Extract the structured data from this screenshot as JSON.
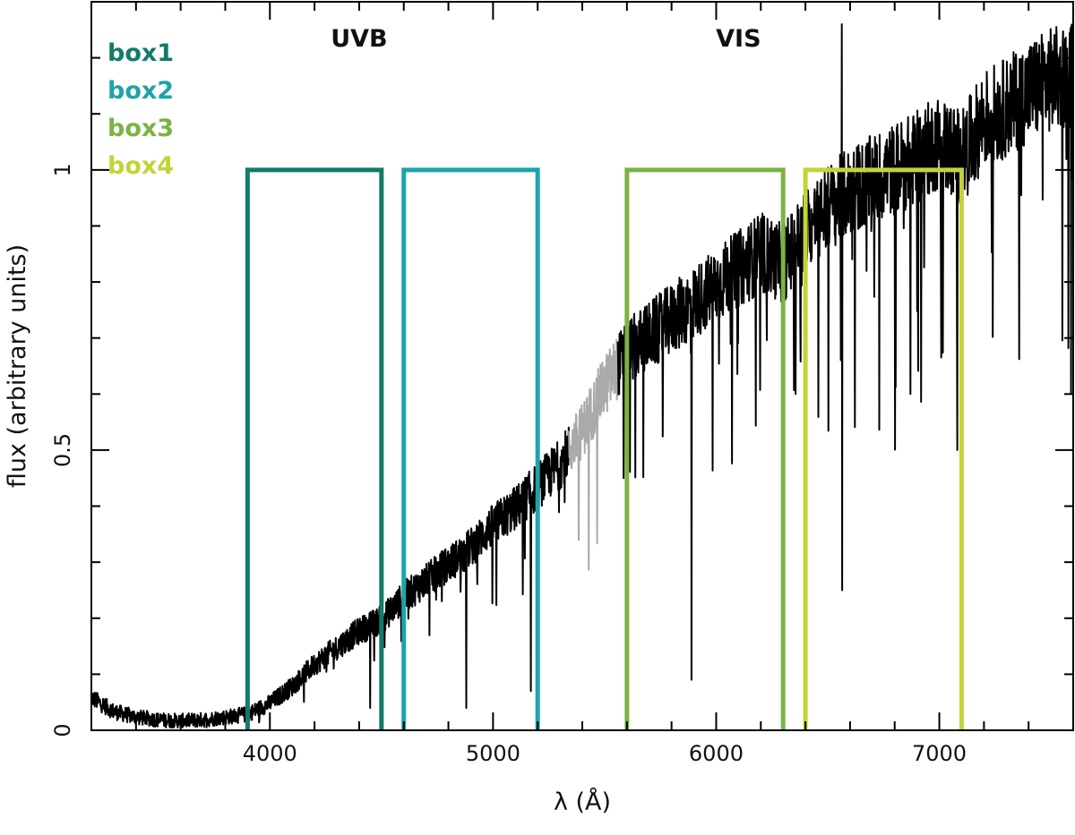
{
  "chart_data": {
    "type": "line",
    "xlabel": "λ (Å)",
    "ylabel": "flux (arbitrary units)",
    "xlim": [
      3200,
      7600
    ],
    "ylim": [
      0,
      1.3
    ],
    "x_ticks": [
      {
        "value": 4000,
        "label": "4000"
      },
      {
        "value": 5000,
        "label": "5000"
      },
      {
        "value": 6000,
        "label": "6000"
      },
      {
        "value": 7000,
        "label": "7000"
      }
    ],
    "y_ticks": [
      {
        "value": 0,
        "label": "0"
      },
      {
        "value": 0.5,
        "label": "0.5"
      },
      {
        "value": 1,
        "label": "1"
      }
    ],
    "x_minor_step": 200,
    "y_minor_step": 0.1,
    "grid": false,
    "spectrum": {
      "color": "#000000",
      "gap_color": "#aaaaaa",
      "gap_range": [
        5340,
        5560
      ],
      "continuum": [
        [
          3200,
          0.06
        ],
        [
          3300,
          0.035
        ],
        [
          3400,
          0.025
        ],
        [
          3500,
          0.02
        ],
        [
          3600,
          0.018
        ],
        [
          3700,
          0.02
        ],
        [
          3800,
          0.025
        ],
        [
          3900,
          0.03
        ],
        [
          4000,
          0.05
        ],
        [
          4100,
          0.08
        ],
        [
          4200,
          0.12
        ],
        [
          4300,
          0.15
        ],
        [
          4400,
          0.18
        ],
        [
          4500,
          0.2
        ],
        [
          4600,
          0.24
        ],
        [
          4700,
          0.27
        ],
        [
          4800,
          0.3
        ],
        [
          4900,
          0.33
        ],
        [
          5000,
          0.37
        ],
        [
          5100,
          0.4
        ],
        [
          5200,
          0.44
        ],
        [
          5300,
          0.48
        ],
        [
          5400,
          0.54
        ],
        [
          5500,
          0.62
        ],
        [
          5600,
          0.68
        ],
        [
          5700,
          0.71
        ],
        [
          5800,
          0.74
        ],
        [
          5900,
          0.77
        ],
        [
          6000,
          0.8
        ],
        [
          6100,
          0.83
        ],
        [
          6200,
          0.86
        ],
        [
          6300,
          0.84
        ],
        [
          6400,
          0.9
        ],
        [
          6500,
          0.94
        ],
        [
          6600,
          0.97
        ],
        [
          6700,
          0.99
        ],
        [
          6800,
          1.01
        ],
        [
          6900,
          1.03
        ],
        [
          7000,
          1.06
        ],
        [
          7100,
          1.03
        ],
        [
          7200,
          1.1
        ],
        [
          7300,
          1.12
        ],
        [
          7400,
          1.15
        ],
        [
          7500,
          1.17
        ],
        [
          7600,
          1.18
        ]
      ],
      "absorption_lines": [
        {
          "x": 4450,
          "y": 0.04
        },
        {
          "x": 4880,
          "y": 0.04
        },
        {
          "x": 5170,
          "y": 0.07
        },
        {
          "x": 5890,
          "y": 0.09
        },
        {
          "x": 6565,
          "y": 0.25
        },
        {
          "x": 6870,
          "y": 0.6
        },
        {
          "x": 7080,
          "y": 0.5
        },
        {
          "x": 7590,
          "y": 0.6
        }
      ],
      "emission_lines": [
        {
          "x": 6563,
          "y": 1.26
        }
      ]
    },
    "boxes": [
      {
        "name": "box1",
        "x0": 3900,
        "x1": 4500,
        "y_top": 1,
        "color": "#147a6a"
      },
      {
        "name": "box2",
        "x0": 4600,
        "x1": 5200,
        "y_top": 1,
        "color": "#1fa3a8"
      },
      {
        "name": "box3",
        "x0": 5600,
        "x1": 6300,
        "y_top": 1,
        "color": "#7ab342"
      },
      {
        "name": "box4",
        "x0": 6400,
        "x1": 7100,
        "y_top": 1,
        "color": "#c4d23a"
      }
    ],
    "arm_labels": [
      {
        "text": "UVB",
        "x": 4400,
        "y": 1.22
      },
      {
        "text": "VIS",
        "x": 6100,
        "y": 1.22
      }
    ],
    "legend_placement": "top-left"
  }
}
